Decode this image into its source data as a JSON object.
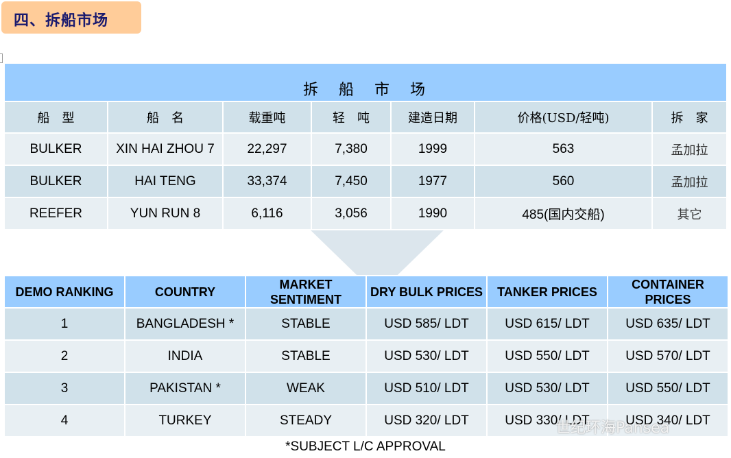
{
  "section_title": "四、拆船市场",
  "table1": {
    "title": "拆　船　市　场",
    "headers": [
      "船　型",
      "船　名",
      "载重吨",
      "轻　吨",
      "建造日期",
      "价格(USD/轻吨)",
      "拆　家"
    ],
    "rows": [
      [
        "BULKER",
        "XIN HAI ZHOU 7",
        "22,297",
        "7,380",
        "1999",
        "563",
        "孟加拉"
      ],
      [
        "BULKER",
        "HAI TENG",
        "33,374",
        "7,450",
        "1977",
        "560",
        "孟加拉"
      ],
      [
        "REEFER",
        "YUN RUN 8",
        "6,116",
        "3,056",
        "1990",
        "485(国内交船)",
        "其它"
      ]
    ]
  },
  "table2": {
    "headers": [
      "DEMO RANKING",
      "COUNTRY",
      "MARKET SENTIMENT",
      "DRY BULK PRICES",
      "TANKER PRICES",
      "CONTAINER PRICES"
    ],
    "rows": [
      [
        "1",
        "BANGLADESH *",
        "STABLE",
        "USD 585/ LDT",
        "USD 615/ LDT",
        "USD 635/ LDT"
      ],
      [
        "2",
        "INDIA",
        "STABLE",
        "USD 530/ LDT",
        "USD 550/ LDT",
        "USD 570/ LDT"
      ],
      [
        "3",
        "PAKISTAN *",
        "WEAK",
        "USD 510/ LDT",
        "USD 530/ LDT",
        "USD 550/ LDT"
      ],
      [
        "4",
        "TURKEY",
        "STEADY",
        "USD 320/ LDT",
        "USD 330/ LDT",
        "USD 340/ LDT"
      ]
    ]
  },
  "footnote": "*SUBJECT L/C APPROVAL",
  "watermark": "世纪环海Pansea"
}
